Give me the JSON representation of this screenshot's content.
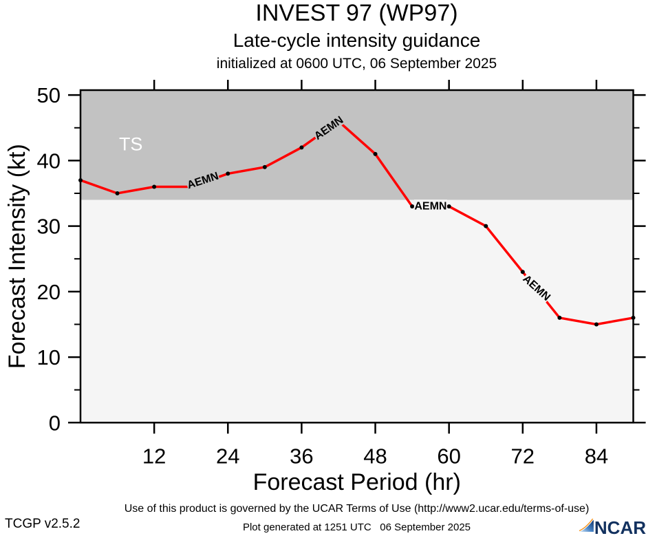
{
  "titles": {
    "main": "INVEST 97 (WP97)",
    "subtitle": "Late-cycle intensity guidance",
    "init_line": "initialized at 0600 UTC, 06 September 2025"
  },
  "chart_data": {
    "type": "line",
    "title": "INVEST 97 (WP97) Late-cycle intensity guidance",
    "xlabel": "Forecast Period (hr)",
    "ylabel": "Forecast Intensity (kt)",
    "xlim": [
      0,
      90
    ],
    "ylim": [
      0,
      50.75
    ],
    "xticks_major": [
      12,
      24,
      36,
      48,
      60,
      72,
      84
    ],
    "yticks_major": [
      0,
      10,
      20,
      30,
      40,
      50
    ],
    "yticks_minor": [
      5,
      15,
      25,
      35,
      45
    ],
    "grid": false,
    "x": [
      0,
      6,
      12,
      18,
      24,
      30,
      36,
      42,
      48,
      54,
      60,
      66,
      72,
      78,
      84,
      90
    ],
    "series": [
      {
        "name": "AEMN",
        "values": [
          37,
          35,
          36,
          36,
          38,
          39,
          42,
          46,
          41,
          33,
          33,
          30,
          23,
          16,
          15,
          16
        ],
        "color": "#ff0000",
        "marker_color": "#000000"
      }
    ],
    "bands": [
      {
        "name": "tropical-storm",
        "label": "TS",
        "from": 34,
        "to": 50.75,
        "color": "#c2c2c2"
      },
      {
        "name": "below-ts",
        "label": "",
        "from": 0,
        "to": 34,
        "color": "#f5f5f5"
      }
    ],
    "ts_label": {
      "text": "TS",
      "hour": 8.2,
      "kt": 42.5,
      "color": "#ffffff"
    },
    "line_labels": [
      {
        "text": "AEMN",
        "hour": 19.9,
        "kt": 37.0,
        "rotation": -18
      },
      {
        "text": "AEMN",
        "hour": 40.4,
        "kt": 45.0,
        "rotation": -35
      },
      {
        "text": "AEMN",
        "hour": 57.0,
        "kt": 33.1,
        "rotation": 0
      },
      {
        "text": "AEMN",
        "hour": 74.3,
        "kt": 20.6,
        "rotation": 42
      }
    ]
  },
  "footer": {
    "terms": "Use of this product is governed by the UCAR Terms of Use (http://www2.ucar.edu/terms-of-use)",
    "version": "TCGP v2.5.2",
    "generated": "Plot generated at 1251 UTC   06 September 2025",
    "logo_text": "NCAR"
  }
}
